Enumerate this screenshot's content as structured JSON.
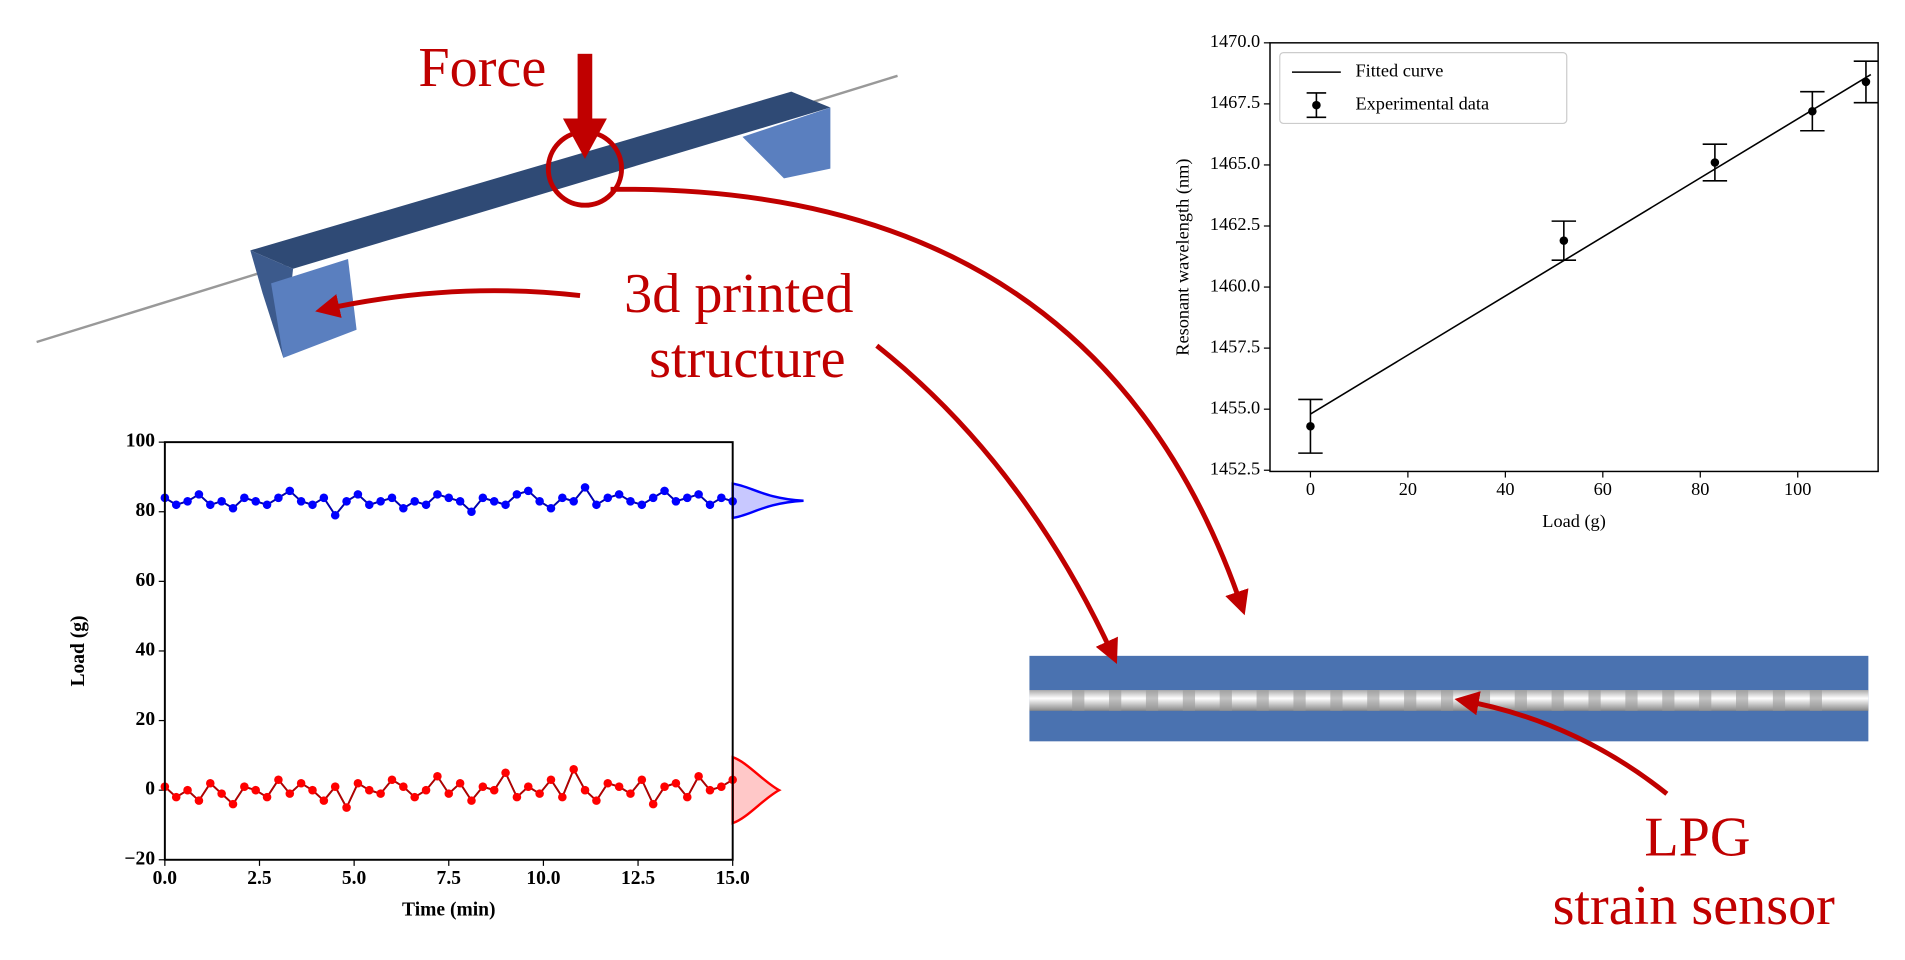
{
  "annotations": {
    "force": "Force",
    "structure": [
      "3d printed",
      "structure"
    ],
    "sensor": [
      "LPG",
      "strain sensor"
    ]
  },
  "chart_data": [
    {
      "type": "scatter",
      "xlabel": "Load (g)",
      "ylabel": "Resonant wavelength (nm)",
      "xlim": [
        -8.3,
        116.5
      ],
      "ylim": [
        1452.45,
        1470
      ],
      "xticks": [
        0,
        20,
        40,
        60,
        80,
        100
      ],
      "yticks": [
        {
          "value": 1452.5,
          "label": "1452.5"
        },
        {
          "value": 1455,
          "label": "1455.0"
        },
        {
          "value": 1457.5,
          "label": "1457.5"
        },
        {
          "value": 1460,
          "label": "1460.0"
        },
        {
          "value": 1462.5,
          "label": "1462.5"
        },
        {
          "value": 1465,
          "label": "1465.0"
        },
        {
          "value": 1467.5,
          "label": "1467.5"
        },
        {
          "value": 1470,
          "label": "1470.0"
        }
      ],
      "legend": "upper left",
      "series": [
        {
          "name": "Fitted curve",
          "mode": "line",
          "color": "#000000",
          "x": [
            0,
            115
          ],
          "values": [
            1454.8,
            1468.7
          ]
        },
        {
          "name": "Experimental data",
          "mode": "errorbar",
          "color": "#000000",
          "x": [
            0,
            52,
            83,
            103,
            114
          ],
          "values": [
            1454.3,
            1461.9,
            1465.1,
            1467.2,
            1468.4
          ],
          "errors": [
            1.1,
            0.8,
            0.75,
            0.8,
            0.85
          ]
        }
      ]
    },
    {
      "type": "line",
      "xlabel": "Time (min)",
      "ylabel": "Load (g)",
      "xlim": [
        0,
        15
      ],
      "ylim": [
        -20,
        100
      ],
      "xticks": [
        {
          "value": 0,
          "label": "0.0"
        },
        {
          "value": 2.5,
          "label": "2.5"
        },
        {
          "value": 5,
          "label": "5.0"
        },
        {
          "value": 7.5,
          "label": "7.5"
        },
        {
          "value": 10,
          "label": "10.0"
        },
        {
          "value": 12.5,
          "label": "12.5"
        },
        {
          "value": 15,
          "label": "15.0"
        }
      ],
      "yticks": [
        {
          "value": -20,
          "label": "−20"
        },
        0,
        20,
        40,
        60,
        80,
        100
      ],
      "x": [
        0,
        0.3,
        0.6,
        0.9,
        1.2,
        1.5,
        1.8,
        2.1,
        2.4,
        2.7,
        3,
        3.3,
        3.6,
        3.9,
        4.2,
        4.5,
        4.8,
        5.1,
        5.4,
        5.7,
        6,
        6.3,
        6.6,
        6.9,
        7.2,
        7.5,
        7.8,
        8.1,
        8.4,
        8.7,
        9,
        9.3,
        9.6,
        9.9,
        10.2,
        10.5,
        10.8,
        11.1,
        11.4,
        11.7,
        12,
        12.3,
        12.6,
        12.9,
        13.2,
        13.5,
        13.8,
        14.1,
        14.4,
        14.7,
        15
      ],
      "series": [
        {
          "color": "#0000ff",
          "values": [
            84,
            82,
            83,
            85,
            82,
            83,
            81,
            84,
            83,
            82,
            84,
            86,
            83,
            82,
            84,
            79,
            83,
            85,
            82,
            83,
            84,
            81,
            83,
            82,
            85,
            84,
            83,
            80,
            84,
            83,
            82,
            85,
            86,
            83,
            81,
            84,
            83,
            87,
            82,
            84,
            85,
            83,
            82,
            84,
            86,
            83,
            84,
            85,
            82,
            84,
            83
          ]
        },
        {
          "color": "#ff0000",
          "values": [
            1,
            -2,
            0,
            -3,
            2,
            -1,
            -4,
            1,
            0,
            -2,
            3,
            -1,
            2,
            0,
            -3,
            1,
            -5,
            2,
            0,
            -1,
            3,
            1,
            -2,
            0,
            4,
            -1,
            2,
            -3,
            1,
            0,
            5,
            -2,
            1,
            -1,
            3,
            -2,
            6,
            0,
            -3,
            2,
            1,
            -1,
            3,
            -4,
            1,
            2,
            -2,
            4,
            0,
            1,
            3
          ]
        }
      ]
    }
  ]
}
